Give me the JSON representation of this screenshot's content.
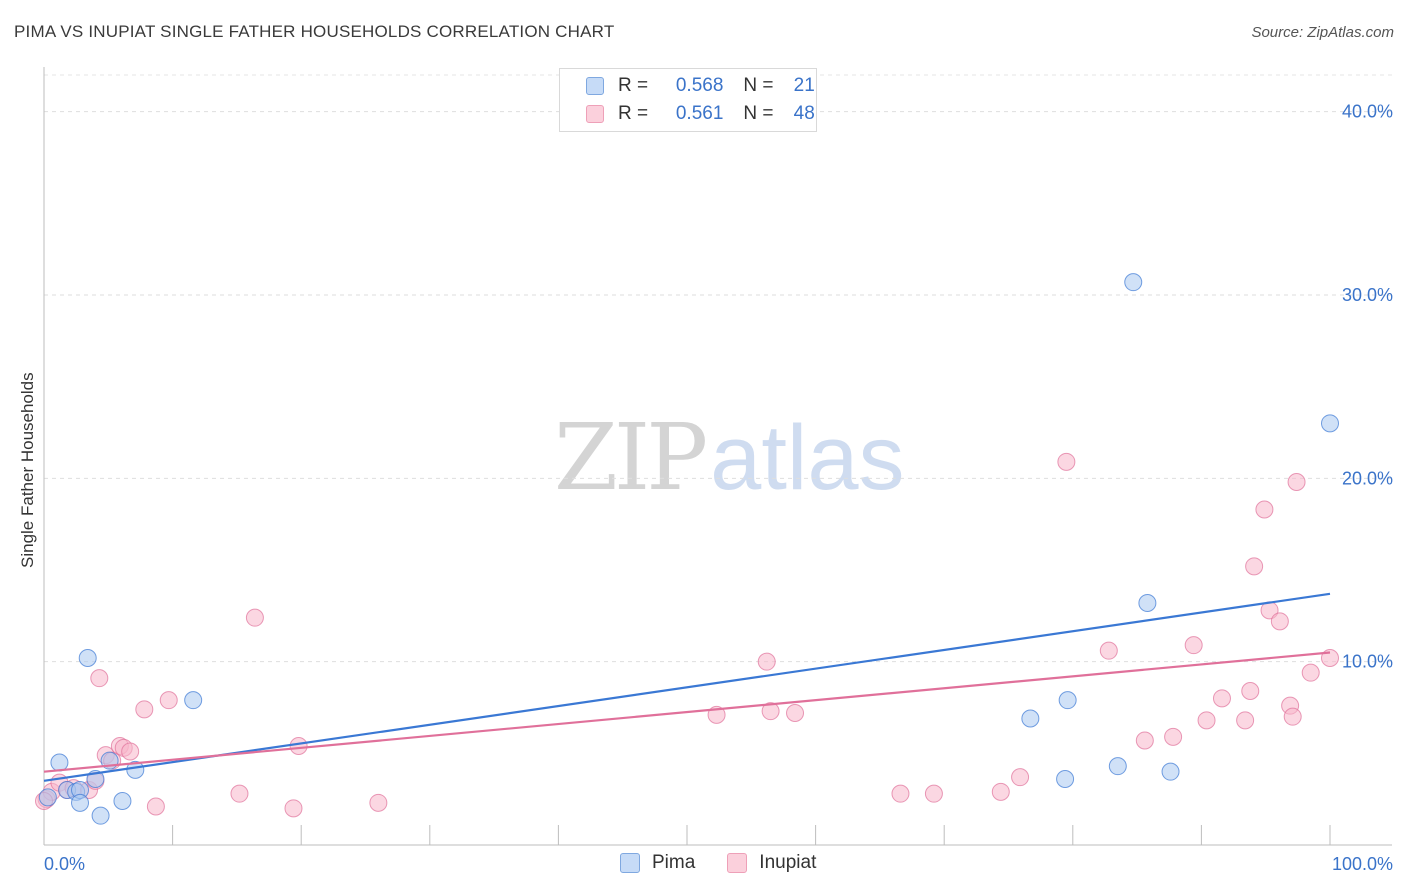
{
  "title": "PIMA VS INUPIAT SINGLE FATHER HOUSEHOLDS CORRELATION CHART",
  "source": "Source: ZipAtlas.com",
  "watermark": {
    "zip": "ZIP",
    "atlas": "atlas"
  },
  "legend": {
    "rows": [
      {
        "r_label": "R =",
        "r_value": "0.568",
        "n_label": "N =",
        "n_value": "21",
        "color": "#a9c8f0"
      },
      {
        "r_label": "R =",
        "r_value": "0.561",
        "n_label": "N =",
        "n_value": "48",
        "color": "#f7b6ca"
      }
    ]
  },
  "chart_data": {
    "type": "scatter",
    "title": "PIMA VS INUPIAT SINGLE FATHER HOUSEHOLDS CORRELATION CHART",
    "xlabel": "",
    "ylabel": "Single Father Households",
    "xlim": [
      0,
      100
    ],
    "ylim": [
      0,
      42
    ],
    "x_tick_labels": [
      "0.0%",
      "100.0%"
    ],
    "y_ticks": [
      10,
      20,
      30,
      40
    ],
    "y_tick_labels": [
      "10.0%",
      "20.0%",
      "30.0%",
      "40.0%"
    ],
    "grid": true,
    "legend_position": "top-center",
    "series": [
      {
        "name": "Pima",
        "color": "#3a78d4",
        "fill": "#a9c8f0",
        "r": 0.568,
        "n": 21,
        "trend": [
          [
            0,
            3.5
          ],
          [
            100,
            13.7
          ]
        ],
        "points": [
          [
            0.3,
            2.6
          ],
          [
            1.2,
            4.5
          ],
          [
            1.8,
            3.0
          ],
          [
            2.5,
            2.9
          ],
          [
            2.8,
            3.0
          ],
          [
            3.4,
            10.2
          ],
          [
            2.8,
            2.3
          ],
          [
            4.0,
            3.6
          ],
          [
            4.4,
            1.6
          ],
          [
            5.1,
            4.6
          ],
          [
            6.1,
            2.4
          ],
          [
            7.1,
            4.1
          ],
          [
            11.6,
            7.9
          ],
          [
            76.7,
            6.9
          ],
          [
            79.6,
            7.9
          ],
          [
            79.4,
            3.6
          ],
          [
            83.5,
            4.3
          ],
          [
            84.7,
            30.7
          ],
          [
            87.6,
            4.0
          ],
          [
            85.8,
            13.2
          ],
          [
            100.0,
            23.0
          ]
        ]
      },
      {
        "name": "Inupiat",
        "color": "#e0709a",
        "fill": "#f7b6ca",
        "r": 0.561,
        "n": 48,
        "trend": [
          [
            0,
            4.0
          ],
          [
            100,
            10.5
          ]
        ],
        "points": [
          [
            0.2,
            2.5
          ],
          [
            0.6,
            2.9
          ],
          [
            1.2,
            3.4
          ],
          [
            1.8,
            3.0
          ],
          [
            2.3,
            3.1
          ],
          [
            3.5,
            3.0
          ],
          [
            4.0,
            3.5
          ],
          [
            4.3,
            9.1
          ],
          [
            4.8,
            4.9
          ],
          [
            5.3,
            4.6
          ],
          [
            5.9,
            5.4
          ],
          [
            6.2,
            5.3
          ],
          [
            6.7,
            5.1
          ],
          [
            7.8,
            7.4
          ],
          [
            8.7,
            2.1
          ],
          [
            9.7,
            7.9
          ],
          [
            15.2,
            2.8
          ],
          [
            16.4,
            12.4
          ],
          [
            19.4,
            2.0
          ],
          [
            19.8,
            5.4
          ],
          [
            26.0,
            2.3
          ],
          [
            52.3,
            7.1
          ],
          [
            56.2,
            10.0
          ],
          [
            56.5,
            7.3
          ],
          [
            58.4,
            7.2
          ],
          [
            66.6,
            2.8
          ],
          [
            69.2,
            2.8
          ],
          [
            74.4,
            2.9
          ],
          [
            75.9,
            3.7
          ],
          [
            79.5,
            20.9
          ],
          [
            82.8,
            10.6
          ],
          [
            85.6,
            5.7
          ],
          [
            87.8,
            5.9
          ],
          [
            89.4,
            10.9
          ],
          [
            90.4,
            6.8
          ],
          [
            91.6,
            8.0
          ],
          [
            93.4,
            6.8
          ],
          [
            93.8,
            8.4
          ],
          [
            94.1,
            15.2
          ],
          [
            94.9,
            18.3
          ],
          [
            95.3,
            12.8
          ],
          [
            96.1,
            12.2
          ],
          [
            96.9,
            7.6
          ],
          [
            97.1,
            7.0
          ],
          [
            97.4,
            19.8
          ],
          [
            98.5,
            9.4
          ],
          [
            100.0,
            10.2
          ],
          [
            0.0,
            2.4
          ]
        ]
      }
    ]
  }
}
